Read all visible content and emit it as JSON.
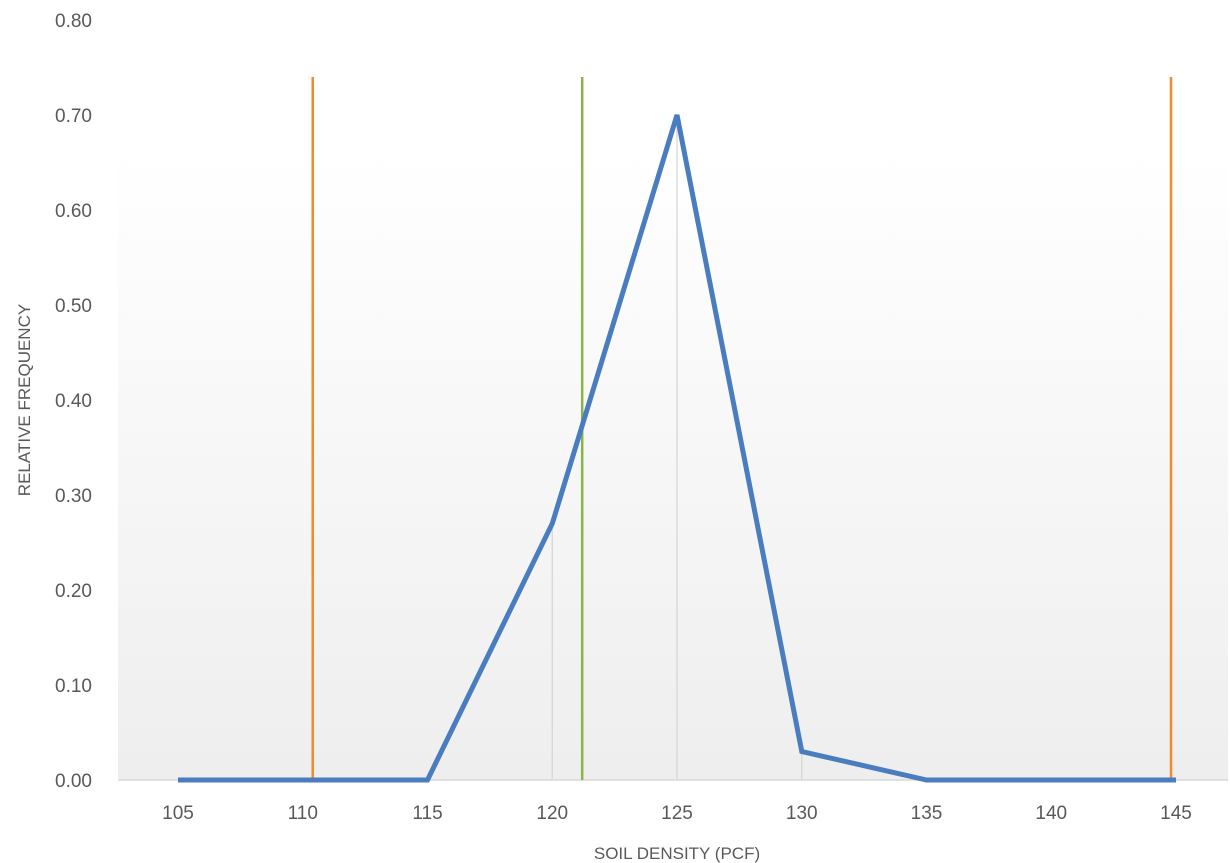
{
  "chart_data": {
    "type": "line",
    "title": "",
    "xlabel": "SOIL DENSITY (PCF)",
    "ylabel": "RELATIVE FREQUENCY",
    "x_categories": [
      105,
      110,
      115,
      120,
      125,
      130,
      135,
      140,
      145
    ],
    "ylim": [
      0,
      0.8
    ],
    "y_ticks": [
      "0.00",
      "0.10",
      "0.20",
      "0.30",
      "0.40",
      "0.50",
      "0.60",
      "0.70",
      "0.80"
    ],
    "series": [
      {
        "color": "#4a7cc0",
        "points": [
          {
            "x": 105,
            "y": 0.0
          },
          {
            "x": 115,
            "y": 0.0
          },
          {
            "x": 120,
            "y": 0.27
          },
          {
            "x": 125,
            "y": 0.7
          },
          {
            "x": 130,
            "y": 0.03
          },
          {
            "x": 135,
            "y": 0.0
          },
          {
            "x": 145,
            "y": 0.0
          }
        ]
      }
    ],
    "reference_lines": [
      {
        "x": 110.4,
        "y_top": 0.74,
        "color": "#f08a2c"
      },
      {
        "x": 121.2,
        "y_top": 0.74,
        "color": "#8ab34a"
      },
      {
        "x": 144.8,
        "y_top": 0.74,
        "color": "#f08a2c"
      }
    ],
    "drop_lines_at": [
      120,
      125,
      130
    ],
    "grid": false,
    "legend": "none"
  }
}
